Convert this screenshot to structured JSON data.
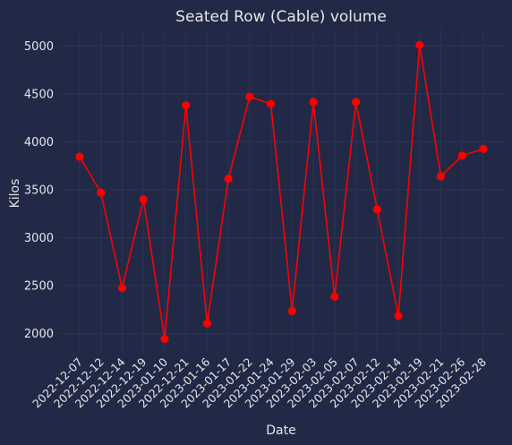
{
  "colors": {
    "background": "#212946",
    "grid": "#2A3459",
    "text": "#E6E6E6",
    "line": "#FF0000"
  },
  "chart_data": {
    "type": "line",
    "title": "Seated Row (Cable) volume",
    "xlabel": "Date",
    "ylabel": "Kilos",
    "grid": true,
    "ylim": [
      1800,
      5180
    ],
    "yticks": [
      2000,
      2500,
      3000,
      3500,
      4000,
      4500,
      5000
    ],
    "categories": [
      "2022-12-07",
      "2022-12-12",
      "2022-12-14",
      "2022-12-19",
      "2023-01-10",
      "2022-12-21",
      "2023-01-16",
      "2023-01-17",
      "2023-01-22",
      "2023-01-24",
      "2023-01-29",
      "2023-02-03",
      "2023-02-05",
      "2023-02-07",
      "2023-02-12",
      "2023-02-14",
      "2023-02-19",
      "2023-02-21",
      "2023-02-26",
      "2023-02-28"
    ],
    "series": [
      {
        "values": [
          3845,
          3470,
          2475,
          3400,
          1945,
          4380,
          2105,
          3615,
          4470,
          4395,
          2235,
          4415,
          2385,
          4415,
          3295,
          2185,
          5010,
          3640,
          3855,
          3925
        ]
      }
    ]
  }
}
